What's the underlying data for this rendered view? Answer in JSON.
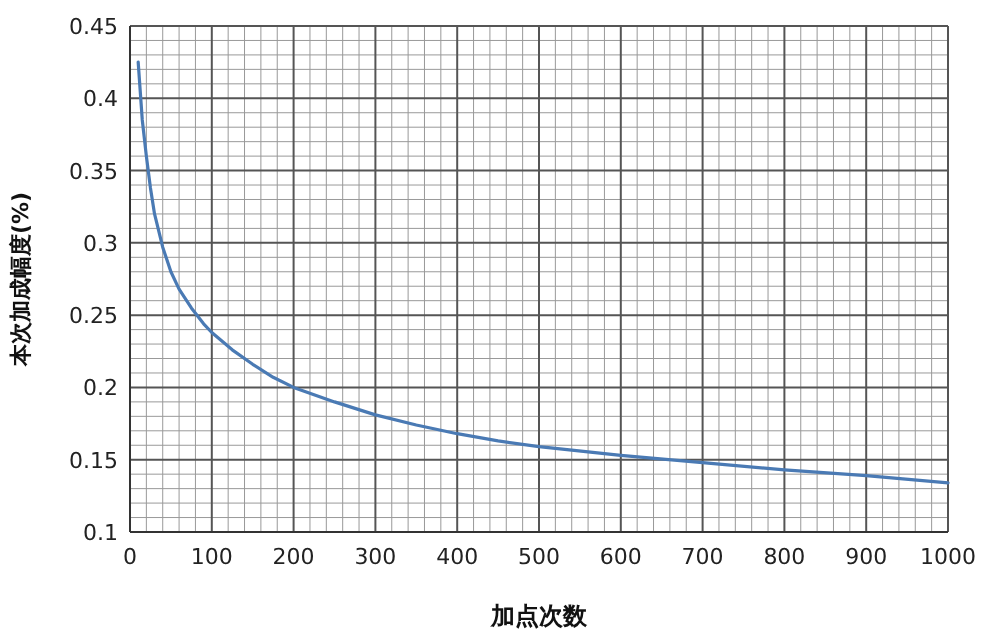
{
  "chart_data": {
    "type": "line",
    "xlabel": "加点次数",
    "ylabel": "本次加成幅度(%)",
    "x": [
      10,
      15,
      20,
      25,
      30,
      40,
      50,
      60,
      75,
      90,
      100,
      125,
      150,
      175,
      200,
      250,
      300,
      350,
      400,
      450,
      500,
      600,
      700,
      800,
      900,
      1000
    ],
    "series": [
      {
        "color": "#4a7ab4",
        "values": [
          0.425,
          0.385,
          0.36,
          0.338,
          0.32,
          0.297,
          0.28,
          0.268,
          0.255,
          0.244,
          0.238,
          0.226,
          0.216,
          0.207,
          0.2,
          0.19,
          0.181,
          0.174,
          0.168,
          0.163,
          0.159,
          0.153,
          0.148,
          0.143,
          0.139,
          0.134
        ]
      }
    ],
    "xlim": [
      0,
      1000
    ],
    "xticks": [
      0,
      100,
      200,
      300,
      400,
      500,
      600,
      700,
      800,
      900,
      1000
    ],
    "ylim": [
      0.1,
      0.45
    ],
    "yticks": [
      0.1,
      0.15,
      0.2,
      0.25,
      0.3,
      0.35,
      0.4,
      0.45
    ],
    "grid": true
  }
}
